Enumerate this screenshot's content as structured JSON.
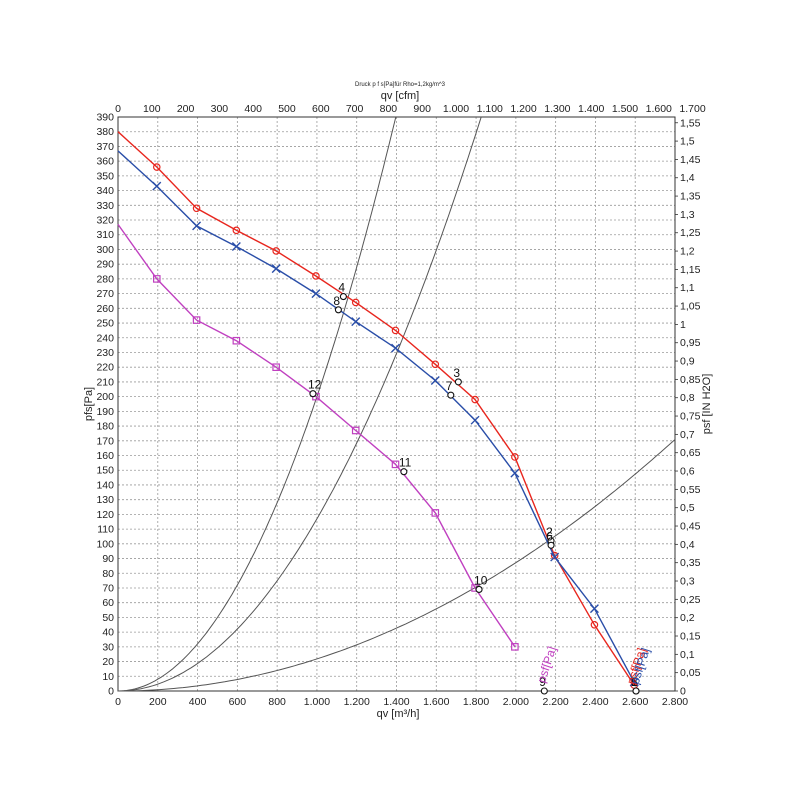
{
  "chart_data": {
    "type": "line",
    "title": "Druck p f s[Pa]für Rho=1,2kg/m^3",
    "xlabel_bottom": "qv [m³/h]",
    "xlabel_top": "qv [cfm]",
    "ylabel_left": "pfs[Pa]",
    "ylabel_right": "psf [IN H2O]",
    "xlim": [
      0,
      2800
    ],
    "ylim": [
      0,
      390
    ],
    "grid": true,
    "x_ticks_bottom": [
      "0",
      "200",
      "400",
      "600",
      "800",
      "1.000",
      "1.200",
      "1.400",
      "1.600",
      "1.800",
      "2.000",
      "2.200",
      "2.400",
      "2.600",
      "2.800"
    ],
    "x_ticks_top": [
      "0",
      "100",
      "200",
      "300",
      "400",
      "500",
      "600",
      "700",
      "800",
      "900",
      "1.000",
      "1.100",
      "1.200",
      "1.300",
      "1.400",
      "1.500",
      "1.600",
      "1.700"
    ],
    "y_ticks_left": [
      "0",
      "10",
      "20",
      "30",
      "40",
      "50",
      "60",
      "70",
      "80",
      "90",
      "100",
      "110",
      "120",
      "130",
      "140",
      "150",
      "160",
      "170",
      "180",
      "190",
      "200",
      "210",
      "220",
      "230",
      "240",
      "250",
      "260",
      "270",
      "280",
      "290",
      "300",
      "310",
      "320",
      "330",
      "340",
      "350",
      "360",
      "370",
      "380",
      "390"
    ],
    "y_ticks_right": [
      "0",
      "0,05",
      "0,1",
      "0,15",
      "0,2",
      "0,25",
      "0,3",
      "0,35",
      "0,4",
      "0,45",
      "0,5",
      "0,55",
      "0,6",
      "0,65",
      "0,7",
      "0,75",
      "0,8",
      "0,85",
      "0,9",
      "0,95",
      "1",
      "1,05",
      "1,1",
      "1,15",
      "1,2",
      "1,25",
      "1,3",
      "1,35",
      "1,4",
      "1,45",
      "1,5",
      "1,55"
    ],
    "series": [
      {
        "name": "psf[Pa]",
        "color": "#e8261e",
        "marker": "circle",
        "x": [
          0,
          195,
          395,
          595,
          795,
          995,
          1195,
          1395,
          1595,
          1795,
          1995,
          2195,
          2395,
          2595
        ],
        "y": [
          380,
          356,
          328,
          313,
          299,
          282,
          264,
          245,
          222,
          198,
          159,
          92,
          45,
          4
        ]
      },
      {
        "name": "psf[Pa]",
        "color": "#2a4ea8",
        "marker": "x",
        "x": [
          0,
          195,
          395,
          595,
          795,
          995,
          1195,
          1395,
          1595,
          1795,
          1995,
          2195,
          2395,
          2595
        ],
        "y": [
          367,
          343,
          316,
          302,
          287,
          270,
          251,
          233,
          211,
          184,
          148,
          91,
          56,
          6
        ]
      },
      {
        "name": "psf[Pa]",
        "color": "#c040c0",
        "marker": "square",
        "x": [
          0,
          195,
          395,
          595,
          795,
          995,
          1195,
          1395,
          1595,
          1795,
          1995
        ],
        "y": [
          317,
          280,
          252,
          238,
          220,
          200,
          177,
          154,
          121,
          70,
          30
        ]
      }
    ],
    "system_curves": [
      {
        "k": 0.0002,
        "x_max": 1720
      },
      {
        "k": 0.000117,
        "x_max": 2320
      },
      {
        "k": 2.18e-05,
        "x_max": 2800
      }
    ],
    "points": [
      {
        "label": "4",
        "x": 1133,
        "y": 268
      },
      {
        "label": "8",
        "x": 1108,
        "y": 259
      },
      {
        "label": "3",
        "x": 1711,
        "y": 210
      },
      {
        "label": "7",
        "x": 1673,
        "y": 201
      },
      {
        "label": "12",
        "x": 980,
        "y": 202
      },
      {
        "label": "11",
        "x": 1437,
        "y": 149
      },
      {
        "label": "2",
        "x": 2177,
        "y": 102
      },
      {
        "label": "6",
        "x": 2177,
        "y": 99
      },
      {
        "label": "10",
        "x": 1815,
        "y": 69
      },
      {
        "label": "9",
        "x": 2143,
        "y": 0
      },
      {
        "label": "1",
        "x": 2604,
        "y": 0
      },
      {
        "label": "5",
        "x": 2604,
        "y": 0
      }
    ],
    "curve_labels": [
      {
        "text": "psf[Pa]",
        "color": "#c040c0",
        "x": 2145,
        "y": 5
      },
      {
        "text": "psf[Pa]",
        "color": "#e8261e",
        "x": 2595,
        "y": 4
      },
      {
        "text": "psf[Pa]",
        "color": "#2a4ea8",
        "x": 2615,
        "y": 4
      }
    ]
  }
}
